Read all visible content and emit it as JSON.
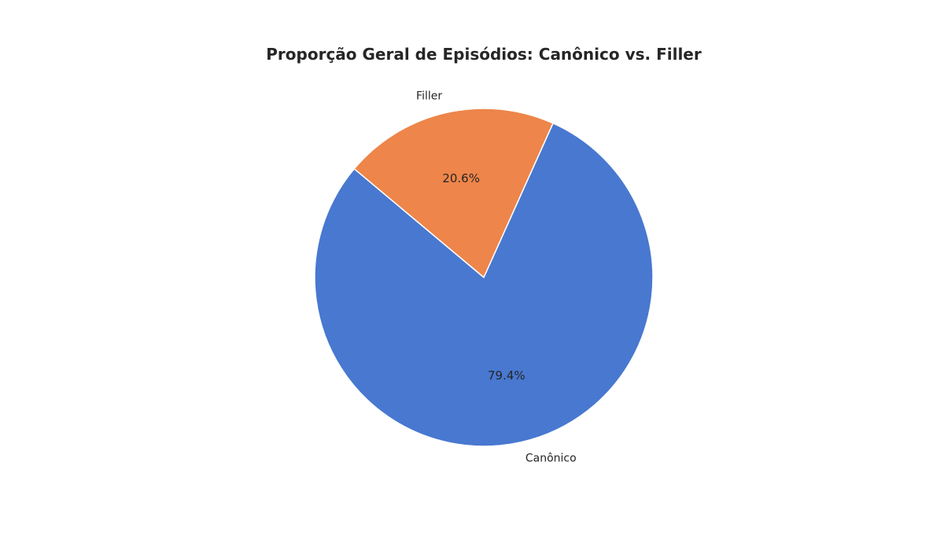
{
  "chart_data": {
    "type": "pie",
    "title": "Proporção Geral de Episódios: Canônico vs. Filler",
    "start_angle_deg": 140,
    "direction": "counterclockwise",
    "slices": [
      {
        "label": "Canônico",
        "value": 79.4,
        "pct_label": "79.4%",
        "color": "#4878d0"
      },
      {
        "label": "Filler",
        "value": 20.6,
        "pct_label": "20.6%",
        "color": "#ee854a"
      }
    ]
  }
}
